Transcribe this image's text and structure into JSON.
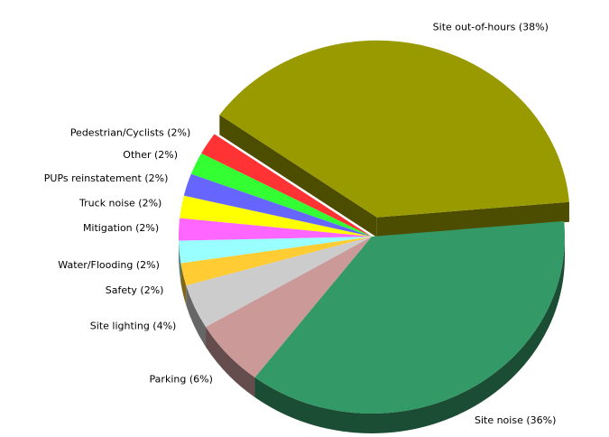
{
  "chart_data": {
    "type": "pie3d",
    "categories": [
      "Site out-of-hours (38%)",
      "Site noise (36%)",
      "Parking (6%)",
      "Site lighting (4%)",
      "Safety (2%)",
      "Water/Flooding (2%)",
      "Mitigation (2%)",
      "Truck noise (2%)",
      "PUPs reinstatement (2%)",
      "Other (2%)",
      "Pedestrian/Cyclists (2%)"
    ],
    "values": [
      38,
      36,
      6,
      4,
      2,
      2,
      2,
      2,
      2,
      2,
      2
    ],
    "colors": [
      "#999900",
      "#339966",
      "#cc9999",
      "#cccccc",
      "#ffcc33",
      "#99ffff",
      "#ff66ff",
      "#ffff00",
      "#6666ff",
      "#33ff33",
      "#ff3333"
    ]
  }
}
